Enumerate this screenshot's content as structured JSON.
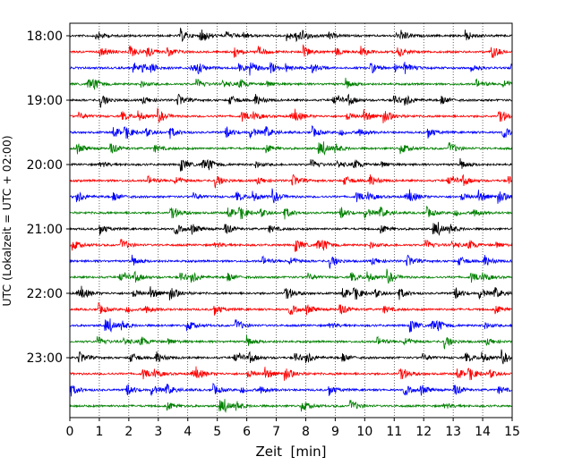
{
  "chart_data": {
    "type": "line",
    "title": "",
    "xlabel": "Zeit  [min]",
    "ylabel": "UTC (Lokalzeit = UTC + 02:00)",
    "xlim": [
      0,
      15
    ],
    "x_ticks": [
      "0",
      "1",
      "2",
      "3",
      "4",
      "5",
      "6",
      "7",
      "8",
      "9",
      "10",
      "11",
      "12",
      "13",
      "14",
      "15"
    ],
    "y_tick_labels": [
      "18:00",
      "19:00",
      "20:00",
      "21:00",
      "22:00",
      "23:00"
    ],
    "grid": "vertical dotted lines at each minute",
    "trace_colors": [
      "#000000",
      "#ff0000",
      "#0000ff",
      "#008000"
    ],
    "trace_interval_min": 15,
    "traces": [
      {
        "start": "18:00",
        "color": "#000000"
      },
      {
        "start": "18:15",
        "color": "#ff0000"
      },
      {
        "start": "18:30",
        "color": "#0000ff"
      },
      {
        "start": "18:45",
        "color": "#008000"
      },
      {
        "start": "19:00",
        "color": "#000000"
      },
      {
        "start": "19:15",
        "color": "#ff0000"
      },
      {
        "start": "19:30",
        "color": "#0000ff"
      },
      {
        "start": "19:45",
        "color": "#008000"
      },
      {
        "start": "20:00",
        "color": "#000000"
      },
      {
        "start": "20:15",
        "color": "#ff0000"
      },
      {
        "start": "20:30",
        "color": "#0000ff"
      },
      {
        "start": "20:45",
        "color": "#008000"
      },
      {
        "start": "21:00",
        "color": "#000000"
      },
      {
        "start": "21:15",
        "color": "#ff0000"
      },
      {
        "start": "21:30",
        "color": "#0000ff"
      },
      {
        "start": "21:45",
        "color": "#008000"
      },
      {
        "start": "22:00",
        "color": "#000000"
      },
      {
        "start": "22:15",
        "color": "#ff0000"
      },
      {
        "start": "22:30",
        "color": "#0000ff"
      },
      {
        "start": "22:45",
        "color": "#008000"
      },
      {
        "start": "23:00",
        "color": "#000000"
      },
      {
        "start": "23:15",
        "color": "#ff0000"
      },
      {
        "start": "23:30",
        "color": "#0000ff"
      },
      {
        "start": "23:45",
        "color": "#008000"
      }
    ]
  }
}
